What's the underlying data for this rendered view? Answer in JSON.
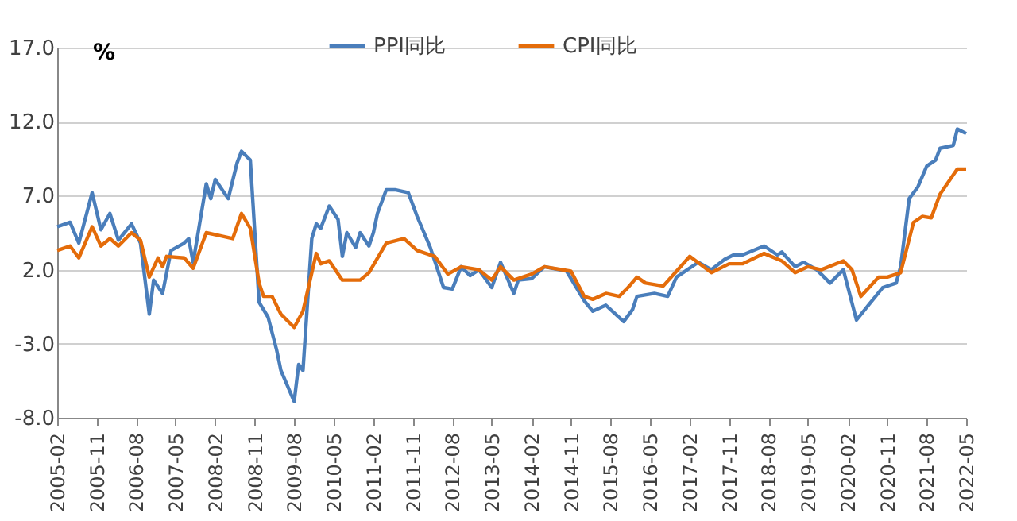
{
  "chart_data": {
    "type": "line",
    "ylabel": "%",
    "xlim": [
      "2005-02",
      "2022-05"
    ],
    "xticks": [
      "2005-02",
      "2005-11",
      "2006-08",
      "2007-05",
      "2008-02",
      "2008-11",
      "2009-08",
      "2010-05",
      "2011-02",
      "2011-11",
      "2012-08",
      "2013-05",
      "2014-02",
      "2014-11",
      "2015-08",
      "2016-05",
      "2017-02",
      "2017-11",
      "2018-08",
      "2019-05",
      "2020-02",
      "2020-11",
      "2021-08",
      "2022-05"
    ],
    "ylim": [
      -8,
      17
    ],
    "yticks": [
      {
        "value": -8,
        "label": "-8.0"
      },
      {
        "value": -3,
        "label": "-3.0"
      },
      {
        "value": 2,
        "label": "2.0"
      },
      {
        "value": 7,
        "label": "7.0"
      },
      {
        "value": 12,
        "label": "12.0"
      },
      {
        "value": 17,
        "label": "17.0"
      }
    ],
    "grid": "y",
    "legend": "top",
    "line_style": "solid",
    "marker": "none",
    "series": [
      {
        "name": "PPI同比",
        "color": "#4a7ebb",
        "x": [
          "2005-02",
          "2005-05",
          "2005-07",
          "2005-10",
          "2005-12",
          "2006-02",
          "2006-04",
          "2006-07",
          "2006-09",
          "2006-11",
          "2006-12",
          "2007-02",
          "2007-04",
          "2007-07",
          "2007-08",
          "2007-09",
          "2007-12",
          "2008-01",
          "2008-02",
          "2008-05",
          "2008-07",
          "2008-08",
          "2008-10",
          "2008-12",
          "2009-02",
          "2009-04",
          "2009-05",
          "2009-08",
          "2009-09",
          "2009-10",
          "2009-12",
          "2010-01",
          "2010-02",
          "2010-04",
          "2010-06",
          "2010-07",
          "2010-08",
          "2010-10",
          "2010-11",
          "2011-01",
          "2011-02",
          "2011-03",
          "2011-05",
          "2011-07",
          "2011-10",
          "2011-12",
          "2012-03",
          "2012-06",
          "2012-08",
          "2012-10",
          "2012-12",
          "2013-02",
          "2013-05",
          "2013-07",
          "2013-10",
          "2013-11",
          "2014-02",
          "2014-05",
          "2014-10",
          "2015-02",
          "2015-04",
          "2015-07",
          "2015-11",
          "2016-01",
          "2016-02",
          "2016-06",
          "2016-09",
          "2016-11",
          "2017-04",
          "2017-07",
          "2017-10",
          "2017-12",
          "2018-02",
          "2018-07",
          "2018-10",
          "2018-11",
          "2019-02",
          "2019-04",
          "2019-07",
          "2019-10",
          "2020-01",
          "2020-04",
          "2020-07",
          "2020-10",
          "2021-01",
          "2021-02",
          "2021-04",
          "2021-06",
          "2021-08",
          "2021-10",
          "2021-11",
          "2022-02",
          "2022-03",
          "2022-05"
        ],
        "values": [
          4.9,
          5.2,
          3.8,
          7.2,
          4.7,
          5.8,
          4.0,
          5.1,
          3.8,
          -1.0,
          1.3,
          0.4,
          3.3,
          3.8,
          4.1,
          2.5,
          7.8,
          6.8,
          8.1,
          6.8,
          9.2,
          10.0,
          9.4,
          -0.2,
          -1.2,
          -3.4,
          -4.8,
          -6.9,
          -4.4,
          -4.8,
          4.1,
          5.1,
          4.8,
          6.3,
          5.4,
          2.9,
          4.5,
          3.5,
          4.5,
          3.6,
          4.5,
          5.8,
          7.4,
          7.4,
          7.2,
          5.6,
          3.5,
          0.8,
          0.7,
          2.2,
          1.6,
          2.0,
          0.8,
          2.5,
          0.4,
          1.3,
          1.4,
          2.2,
          1.9,
          -0.1,
          -0.8,
          -0.4,
          -1.5,
          -0.7,
          0.2,
          0.4,
          0.2,
          1.5,
          2.5,
          2.0,
          2.7,
          3.0,
          3.0,
          3.6,
          3.0,
          3.2,
          2.2,
          2.5,
          2.0,
          1.1,
          2.0,
          -1.4,
          -0.3,
          0.8,
          1.1,
          2.2,
          6.8,
          7.6,
          9.0,
          9.4,
          10.2,
          10.4,
          11.5,
          11.2
        ]
      },
      {
        "name": "CPI同比",
        "color": "#e46c0a",
        "x": [
          "2005-02",
          "2005-05",
          "2005-07",
          "2005-10",
          "2005-12",
          "2006-02",
          "2006-04",
          "2006-07",
          "2006-09",
          "2006-11",
          "2007-01",
          "2007-02",
          "2007-03",
          "2007-07",
          "2007-09",
          "2007-12",
          "2008-03",
          "2008-06",
          "2008-08",
          "2008-10",
          "2008-12",
          "2009-01",
          "2009-03",
          "2009-05",
          "2009-08",
          "2009-10",
          "2010-01",
          "2010-02",
          "2010-04",
          "2010-07",
          "2010-11",
          "2011-01",
          "2011-05",
          "2011-09",
          "2011-12",
          "2012-04",
          "2012-07",
          "2012-10",
          "2013-02",
          "2013-05",
          "2013-07",
          "2013-10",
          "2014-02",
          "2014-05",
          "2014-11",
          "2015-02",
          "2015-04",
          "2015-07",
          "2015-10",
          "2015-12",
          "2016-02",
          "2016-04",
          "2016-08",
          "2016-11",
          "2017-02",
          "2017-07",
          "2017-11",
          "2018-02",
          "2018-07",
          "2018-11",
          "2019-02",
          "2019-05",
          "2019-08",
          "2020-01",
          "2020-03",
          "2020-05",
          "2020-09",
          "2020-11",
          "2021-02",
          "2021-05",
          "2021-07",
          "2021-09",
          "2021-11",
          "2022-03",
          "2022-05"
        ],
        "values": [
          3.3,
          3.6,
          2.8,
          4.9,
          3.6,
          4.1,
          3.6,
          4.5,
          4.0,
          1.5,
          2.8,
          2.2,
          2.9,
          2.8,
          2.1,
          4.5,
          4.3,
          4.1,
          5.8,
          4.8,
          1.1,
          0.2,
          0.2,
          -1.0,
          -1.9,
          -0.8,
          3.1,
          2.4,
          2.6,
          1.3,
          1.3,
          1.8,
          3.8,
          4.1,
          3.3,
          2.9,
          1.7,
          2.2,
          2.0,
          1.3,
          2.2,
          1.3,
          1.7,
          2.2,
          1.9,
          0.2,
          0.0,
          0.4,
          0.2,
          0.8,
          1.5,
          1.1,
          0.9,
          1.9,
          2.9,
          1.8,
          2.4,
          2.4,
          3.1,
          2.6,
          1.8,
          2.2,
          2.0,
          2.6,
          2.0,
          0.2,
          1.5,
          1.5,
          1.8,
          5.2,
          5.6,
          5.5,
          7.1,
          8.8,
          8.8
        ]
      }
    ]
  }
}
